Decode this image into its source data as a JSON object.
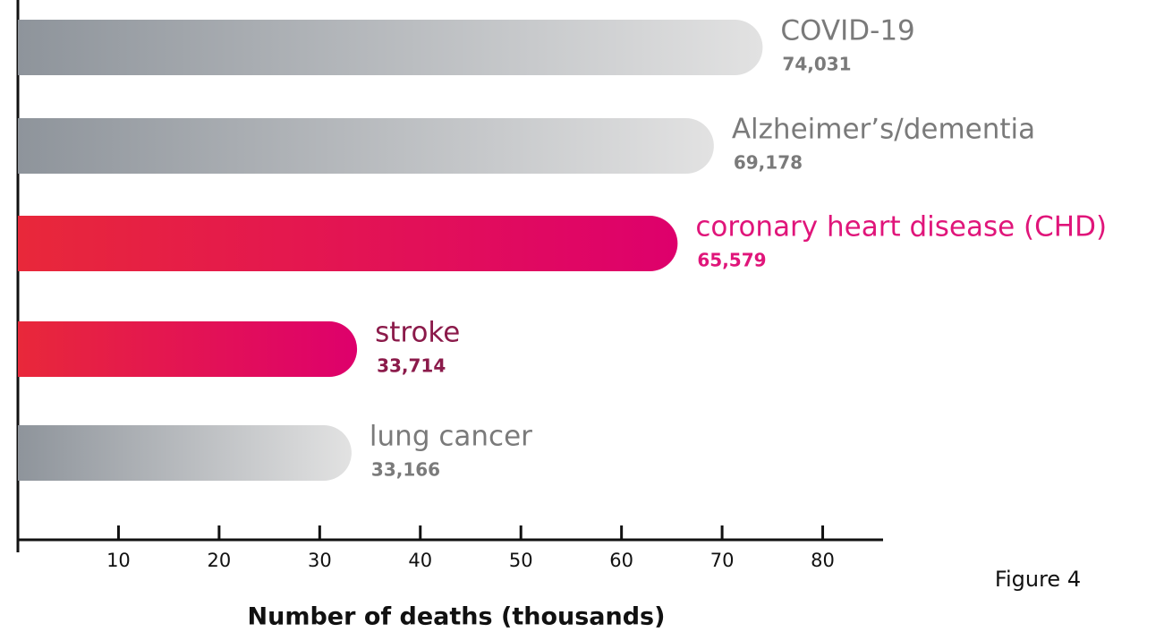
{
  "chart_data": {
    "type": "barh",
    "categories": [
      "COVID-19",
      "Alzheimer’s/dementia",
      "coronary heart disease (CHD)",
      "stroke",
      "lung cancer"
    ],
    "values": [
      74.031,
      69.178,
      65.579,
      33.714,
      33.166
    ],
    "value_labels": [
      "74,031",
      "69,178",
      "65,579",
      "33,714",
      "33,166"
    ],
    "bar_colors": [
      [
        "#8e949b",
        "#e2e2e2"
      ],
      [
        "#8e949b",
        "#e2e2e2"
      ],
      [
        "#e8283a",
        "#de006c"
      ],
      [
        "#e8283a",
        "#de006c"
      ],
      [
        "#8e949b",
        "#e2e2e2"
      ]
    ],
    "label_colors": [
      "#7a7a7a",
      "#7a7a7a",
      "#e0157a",
      "#8b1a4a",
      "#7a7a7a"
    ],
    "xlim": [
      0,
      86
    ],
    "xticks": [
      10,
      20,
      30,
      40,
      50,
      60,
      70,
      80
    ],
    "xlabel": "Number of deaths (thousands)",
    "annotation": "Figure 4"
  }
}
